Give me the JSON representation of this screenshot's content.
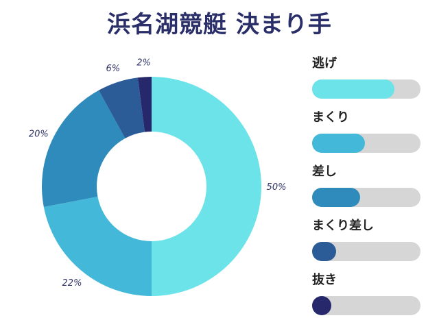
{
  "title": "浜名湖競艇 決まり手",
  "chart_data": {
    "type": "pie",
    "donut": true,
    "categories": [
      "逃げ",
      "まくり",
      "差し",
      "まくり差し",
      "抜き"
    ],
    "values": [
      50,
      22,
      20,
      6,
      2
    ],
    "value_labels": [
      "50%",
      "22%",
      "20%",
      "6%",
      "2%"
    ],
    "colors": [
      "#6be3e8",
      "#44b8d8",
      "#2e8bbb",
      "#2c5c97",
      "#26286b"
    ],
    "legend_position": "right"
  },
  "legend": {
    "items": [
      {
        "label": "逃げ",
        "fill": 0.76,
        "color": "#6be3e8"
      },
      {
        "label": "まくり",
        "fill": 0.49,
        "color": "#44b8d8"
      },
      {
        "label": "差し",
        "fill": 0.44,
        "color": "#2e8bbb"
      },
      {
        "label": "まくり差し",
        "fill": 0.22,
        "color": "#2c5c97"
      },
      {
        "label": "抜き",
        "fill": 0.18,
        "color": "#26286b"
      }
    ]
  }
}
